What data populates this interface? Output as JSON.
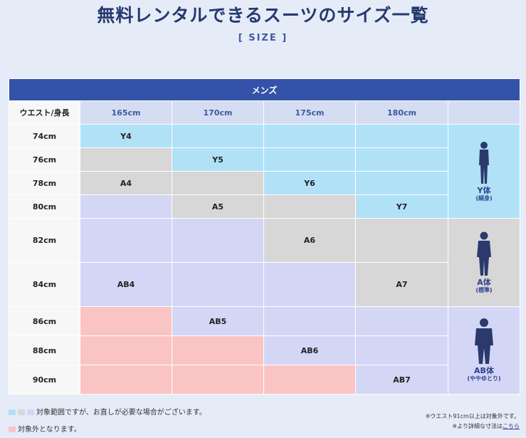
{
  "title": "無料レンタルできるスーツのサイズ一覧",
  "subtitle": "[ SIZE ]",
  "section": "メンズ",
  "corner_label": "ウエスト/身長",
  "heights": [
    "165cm",
    "170cm",
    "175cm",
    "180cm"
  ],
  "rows": [
    {
      "waist": "74cm",
      "cells": [
        "Y4",
        "",
        "",
        ""
      ]
    },
    {
      "waist": "76cm",
      "cells": [
        "",
        "Y5",
        "",
        ""
      ]
    },
    {
      "waist": "78cm",
      "cells": [
        "A4",
        "",
        "Y6",
        ""
      ]
    },
    {
      "waist": "80cm",
      "cells": [
        "",
        "A5",
        "",
        "Y7"
      ]
    },
    {
      "waist": "82cm",
      "cells": [
        "",
        "",
        "A6",
        ""
      ]
    },
    {
      "waist": "84cm",
      "cells": [
        "AB4",
        "",
        "",
        "A7"
      ]
    },
    {
      "waist": "86cm",
      "cells": [
        "",
        "AB5",
        "",
        ""
      ]
    },
    {
      "waist": "88cm",
      "cells": [
        "",
        "",
        "AB6",
        ""
      ]
    },
    {
      "waist": "90cm",
      "cells": [
        "",
        "",
        "",
        "AB7"
      ]
    }
  ],
  "body_types": [
    {
      "name": "Y体",
      "note": "(細身)",
      "icon": "slim-body-icon"
    },
    {
      "name": "A体",
      "note": "(標準)",
      "icon": "standard-body-icon"
    },
    {
      "name": "AB体",
      "note": "(ややゆとり)",
      "icon": "relaxed-body-icon"
    }
  ],
  "colors": {
    "y": "#b0e1f7",
    "a": "#d7d7d7",
    "ab": "#d4d6f5",
    "out": "#fbc4c4",
    "header": "#3352a8"
  },
  "legend": {
    "in_range": "対象範囲ですが、お直しが必要な場合がございます。",
    "out_range": "対象外となります。"
  },
  "notes": {
    "waist_note": "※ウエスト91cm以上は対象外です。",
    "detail_prefix": "※より詳細な寸法は",
    "detail_link": "こちら"
  }
}
